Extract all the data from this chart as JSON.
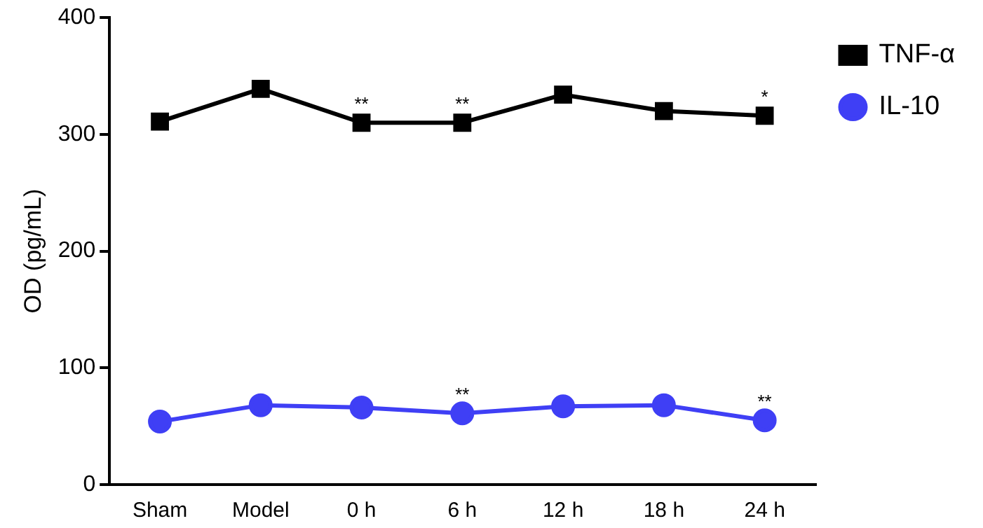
{
  "chart_data": {
    "type": "line",
    "ylabel": "OD (pg/mL)",
    "categories": [
      "Sham",
      "Model",
      "0 h",
      "6 h",
      "12 h",
      "18 h",
      "24 h"
    ],
    "series": [
      {
        "name": "TNF-α",
        "color": "#000000",
        "marker": "square",
        "values": [
          311,
          339,
          310,
          310,
          334,
          320,
          316
        ]
      },
      {
        "name": "IL-10",
        "color": "#3f3ff5",
        "marker": "circle",
        "values": [
          54,
          68,
          66,
          61,
          67,
          68,
          55
        ]
      }
    ],
    "ylim": [
      0,
      400
    ],
    "yticks": [
      0,
      100,
      200,
      300,
      400
    ],
    "grid": false,
    "legend": "top right",
    "annotations": [
      {
        "text": "**",
        "x": "0 h",
        "y": 310
      },
      {
        "text": "**",
        "x": "6 h",
        "y": 310
      },
      {
        "text": "*",
        "x": "24 h",
        "y": 316
      },
      {
        "text": "**",
        "x": "6 h",
        "y": 61
      },
      {
        "text": "**",
        "x": "24 h",
        "y": 55
      }
    ]
  }
}
